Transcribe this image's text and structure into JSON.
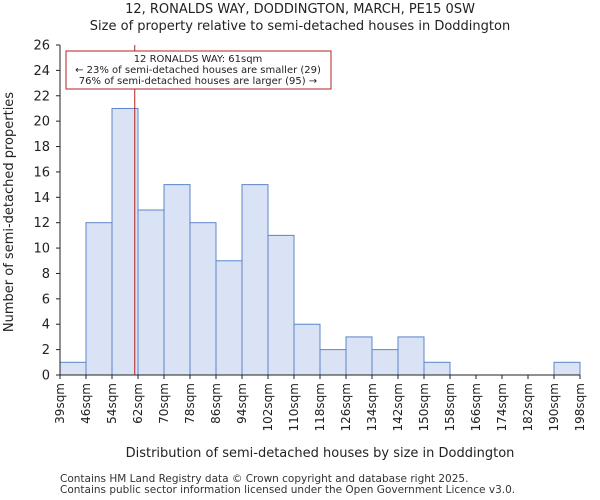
{
  "header": {
    "title": "12, RONALDS WAY, DODDINGTON, MARCH, PE15 0SW",
    "subtitle": "Size of property relative to semi-detached houses in Doddington"
  },
  "footer": {
    "line1": "Contains HM Land Registry data © Crown copyright and database right 2025.",
    "line2": "Contains public sector information licensed under the Open Government Licence v3.0."
  },
  "chart_data": {
    "type": "bar",
    "title": "12, RONALDS WAY, DODDINGTON, MARCH, PE15 0SW",
    "subtitle": "Size of property relative to semi-detached houses in Doddington",
    "xlabel": "Distribution of semi-detached houses by size in Doddington",
    "ylabel": "Number of semi-detached properties",
    "x_tick_labels": [
      "39sqm",
      "46sqm",
      "54sqm",
      "62sqm",
      "70sqm",
      "78sqm",
      "86sqm",
      "94sqm",
      "102sqm",
      "110sqm",
      "118sqm",
      "126sqm",
      "134sqm",
      "142sqm",
      "150sqm",
      "158sqm",
      "166sqm",
      "174sqm",
      "182sqm",
      "190sqm",
      "198sqm"
    ],
    "bin_edges": [
      39,
      46,
      54,
      62,
      70,
      78,
      86,
      94,
      102,
      110,
      118,
      126,
      134,
      142,
      150,
      158,
      166,
      174,
      182,
      190,
      198
    ],
    "values": [
      1,
      12,
      21,
      13,
      15,
      12,
      9,
      15,
      11,
      4,
      2,
      3,
      2,
      3,
      1,
      0,
      0,
      0,
      0,
      1
    ],
    "ylim": [
      0,
      26
    ],
    "y_ticks": [
      0,
      2,
      4,
      6,
      8,
      10,
      12,
      14,
      16,
      18,
      20,
      22,
      24,
      26
    ],
    "grid": false,
    "colors": {
      "bar_fill": "#dae3f5",
      "bar_edge": "#5b85c9",
      "marker_line": "#b22222",
      "annotation_border": "#b22222"
    },
    "marker": {
      "value": 61
    },
    "annotation": {
      "lines": [
        "12 RONALDS WAY: 61sqm",
        "← 23% of semi-detached houses are smaller (29)",
        "76% of semi-detached houses are larger (95) →"
      ]
    }
  }
}
